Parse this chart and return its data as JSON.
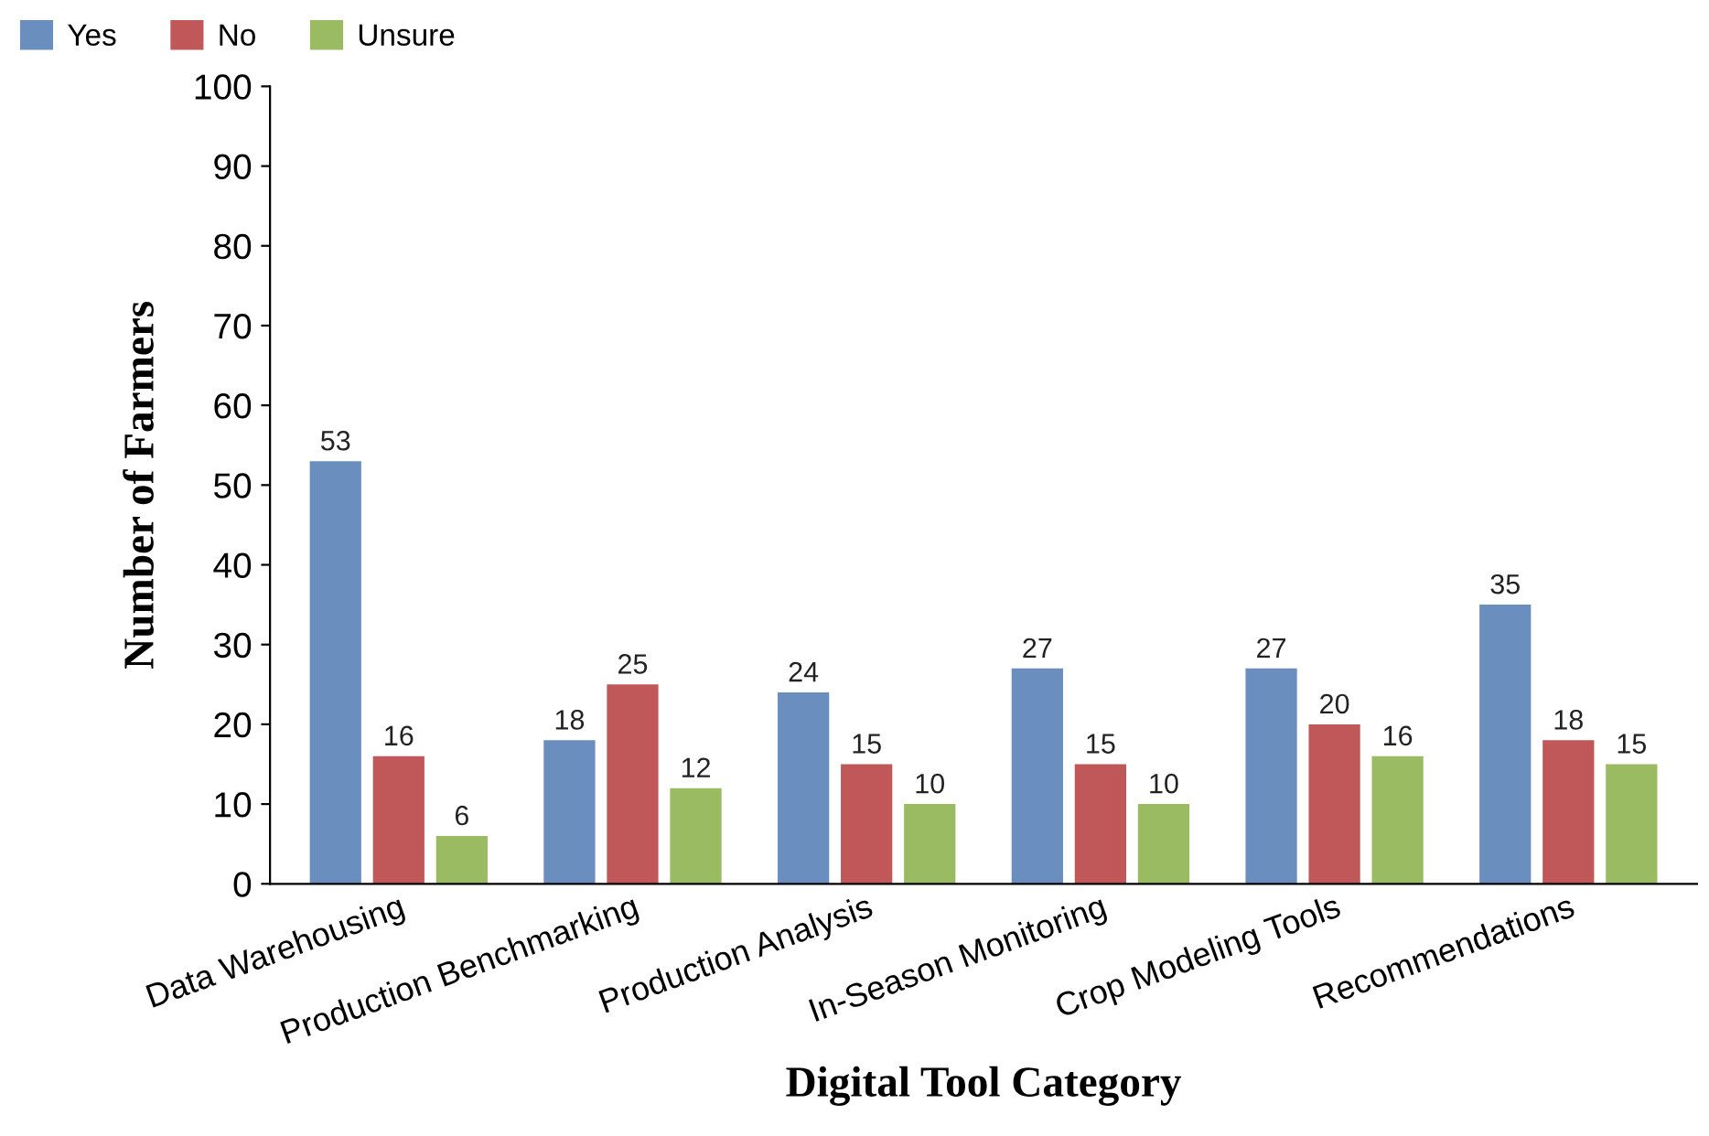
{
  "chart_data": {
    "type": "bar",
    "xlabel": "Digital Tool Category",
    "ylabel": "Number of Farmers",
    "categories": [
      "Data Warehousing",
      "Production Benchmarking",
      "Production Analysis",
      "In-Season Monitoring",
      "Crop Modeling Tools",
      "Recommendations"
    ],
    "series": [
      {
        "name": "Yes",
        "color": "#6a8fbe",
        "values": [
          53,
          18,
          24,
          27,
          27,
          35
        ]
      },
      {
        "name": "No",
        "color": "#c0585a",
        "values": [
          16,
          25,
          15,
          15,
          20,
          18
        ]
      },
      {
        "name": "Unsure",
        "color": "#9bbb62",
        "values": [
          6,
          12,
          10,
          10,
          16,
          15
        ]
      }
    ],
    "ylim": [
      0,
      100
    ],
    "yticks": [
      0,
      10,
      20,
      30,
      40,
      50,
      60,
      70,
      80,
      90,
      100
    ],
    "data_labels": true,
    "grid": false,
    "legend": "top left"
  }
}
